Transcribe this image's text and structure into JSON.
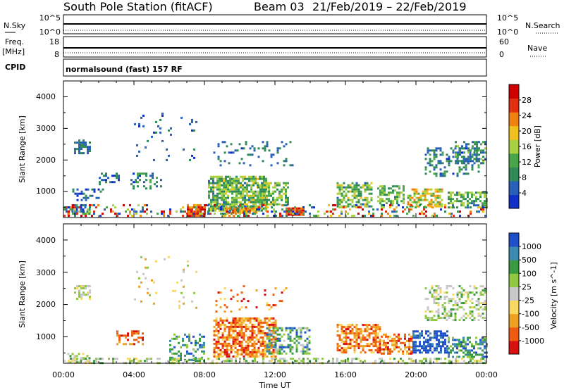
{
  "header": {
    "station": "South Pole Station (fitACF)",
    "beam": "Beam 03",
    "dates": "21/Feb/2019 – 22/Feb/2019"
  },
  "strips": {
    "nsky_label": "N.Sky",
    "nsky_ticks": [
      "10^5",
      "10^0"
    ],
    "nsearch_label": "N.Search",
    "nsearch_ticks": [
      "10^5",
      "10^0"
    ],
    "freq_label": "Freq.",
    "freq_unit": "[MHz]",
    "freq_ticks": [
      "18",
      "8"
    ],
    "nave_label": "Nave",
    "nave_ticks": [
      "60",
      "0"
    ],
    "cpid_label": "CPID",
    "cpid_text": "normalsound (fast) 157 RF"
  },
  "colors": {
    "power": [
      "#1030c8",
      "#2860b8",
      "#2f8a58",
      "#49a549",
      "#a9d040",
      "#f0c020",
      "#f08010",
      "#e03010",
      "#d00000"
    ],
    "velocity": [
      "#d81010",
      "#ee5c10",
      "#f0a020",
      "#f8d860",
      "#c8c8c8",
      "#90c840",
      "#3a9a40",
      "#3c8ab0",
      "#2050c8"
    ]
  },
  "chart_data": [
    {
      "type": "heatmap",
      "panel": "power",
      "ylabel": "Slant Range [km]",
      "yticks": [
        "4000",
        "3000",
        "2000",
        "1000"
      ],
      "ylim": [
        180,
        4500
      ],
      "xlim_hours": [
        0,
        24
      ],
      "colorbar_label": "Power [dB]",
      "colorbar_ticks": [
        "28",
        "24",
        "20",
        "16",
        "12",
        "8",
        "4"
      ],
      "colorbar_range": [
        0,
        30
      ],
      "blobs": [
        {
          "t0": 0.1,
          "t1": 1.5,
          "r0": 300,
          "r1": 600,
          "density": 0.55,
          "v0": 2,
          "v1": 14
        },
        {
          "t0": 0.6,
          "t1": 1.5,
          "r0": 2200,
          "r1": 2650,
          "density": 0.55,
          "v0": 3,
          "v1": 9
        },
        {
          "t0": 0.5,
          "t1": 2.2,
          "r0": 700,
          "r1": 1100,
          "density": 0.35,
          "v0": 2,
          "v1": 8
        },
        {
          "t0": 2.0,
          "t1": 3.2,
          "r0": 1200,
          "r1": 1600,
          "density": 0.45,
          "v0": 2,
          "v1": 10
        },
        {
          "t0": 3.8,
          "t1": 5.5,
          "r0": 1100,
          "r1": 1600,
          "density": 0.3,
          "v0": 3,
          "v1": 12
        },
        {
          "t0": 7.0,
          "t1": 8.0,
          "r0": 250,
          "r1": 600,
          "density": 0.9,
          "v0": 20,
          "v1": 30
        },
        {
          "t0": 8.2,
          "t1": 11.5,
          "r0": 400,
          "r1": 1500,
          "density": 0.75,
          "v0": 6,
          "v1": 18
        },
        {
          "t0": 9.2,
          "t1": 11.0,
          "r0": 300,
          "r1": 500,
          "density": 0.8,
          "v0": 18,
          "v1": 26
        },
        {
          "t0": 11.0,
          "t1": 12.8,
          "r0": 600,
          "r1": 1300,
          "density": 0.6,
          "v0": 8,
          "v1": 18
        },
        {
          "t0": 12.6,
          "t1": 13.6,
          "r0": 250,
          "r1": 500,
          "density": 0.9,
          "v0": 20,
          "v1": 30
        },
        {
          "t0": 15.5,
          "t1": 17.5,
          "r0": 500,
          "r1": 1300,
          "density": 0.65,
          "v0": 6,
          "v1": 18
        },
        {
          "t0": 17.8,
          "t1": 19.3,
          "r0": 600,
          "r1": 1200,
          "density": 0.55,
          "v0": 8,
          "v1": 16
        },
        {
          "t0": 19.5,
          "t1": 21.5,
          "r0": 500,
          "r1": 1100,
          "density": 0.55,
          "v0": 10,
          "v1": 22
        },
        {
          "t0": 20.5,
          "t1": 23.6,
          "r0": 1500,
          "r1": 2400,
          "density": 0.3,
          "v0": 3,
          "v1": 12
        },
        {
          "t0": 22.2,
          "t1": 23.9,
          "r0": 1900,
          "r1": 2600,
          "density": 0.45,
          "v0": 3,
          "v1": 14
        },
        {
          "t0": 21.8,
          "t1": 24.0,
          "r0": 500,
          "r1": 1000,
          "density": 0.6,
          "v0": 6,
          "v1": 16
        },
        {
          "t0": 8.5,
          "t1": 13.0,
          "r0": 1800,
          "r1": 2600,
          "density": 0.12,
          "v0": 3,
          "v1": 10
        },
        {
          "t0": 4.0,
          "t1": 7.5,
          "r0": 1900,
          "r1": 3500,
          "density": 0.05,
          "v0": 2,
          "v1": 8
        },
        {
          "t0": 0.0,
          "t1": 24.0,
          "r0": 200,
          "r1": 600,
          "density": 0.25,
          "v0": 0,
          "v1": 30
        }
      ]
    },
    {
      "type": "heatmap",
      "panel": "velocity",
      "ylabel": "Slant Range [km]",
      "yticks": [
        "4000",
        "3000",
        "2000",
        "1000"
      ],
      "ylim": [
        180,
        4500
      ],
      "xlim_hours": [
        0,
        24
      ],
      "colorbar_label": "Velocity [m s^-1]",
      "colorbar_ticks": [
        "1000",
        "500",
        "100",
        "25",
        "-25",
        "-100",
        "-500",
        "-1000"
      ],
      "blobs": [
        {
          "t0": 0.1,
          "t1": 1.5,
          "r0": 200,
          "r1": 500,
          "density": 0.5,
          "v0": 3,
          "v1": 6
        },
        {
          "t0": 0.6,
          "t1": 1.5,
          "r0": 2200,
          "r1": 2600,
          "density": 0.5,
          "v0": 3,
          "v1": 5
        },
        {
          "t0": 3.0,
          "t1": 4.5,
          "r0": 800,
          "r1": 1200,
          "density": 0.45,
          "v0": 0,
          "v1": 2
        },
        {
          "t0": 6.0,
          "t1": 8.0,
          "r0": 300,
          "r1": 1100,
          "density": 0.4,
          "v0": 5,
          "v1": 8
        },
        {
          "t0": 8.5,
          "t1": 12.0,
          "r0": 400,
          "r1": 1600,
          "density": 0.7,
          "v0": 0,
          "v1": 3
        },
        {
          "t0": 11.5,
          "t1": 14.0,
          "r0": 500,
          "r1": 1300,
          "density": 0.55,
          "v0": 4,
          "v1": 8
        },
        {
          "t0": 15.5,
          "t1": 18.0,
          "r0": 500,
          "r1": 1400,
          "density": 0.6,
          "v0": 0,
          "v1": 3
        },
        {
          "t0": 18.0,
          "t1": 19.8,
          "r0": 500,
          "r1": 1100,
          "density": 0.5,
          "v0": 0,
          "v1": 3
        },
        {
          "t0": 19.8,
          "t1": 21.8,
          "r0": 500,
          "r1": 1200,
          "density": 0.65,
          "v0": 7,
          "v1": 9
        },
        {
          "t0": 20.5,
          "t1": 23.9,
          "r0": 1500,
          "r1": 2600,
          "density": 0.35,
          "v0": 3,
          "v1": 6
        },
        {
          "t0": 21.8,
          "t1": 24.0,
          "r0": 400,
          "r1": 1000,
          "density": 0.55,
          "v0": 5,
          "v1": 8
        },
        {
          "t0": 8.5,
          "t1": 13.0,
          "r0": 1800,
          "r1": 2600,
          "density": 0.1,
          "v0": 0,
          "v1": 3
        },
        {
          "t0": 4.0,
          "t1": 7.5,
          "r0": 1900,
          "r1": 3500,
          "density": 0.05,
          "v0": 2,
          "v1": 5
        },
        {
          "t0": 0.0,
          "t1": 24.0,
          "r0": 200,
          "r1": 350,
          "density": 0.4,
          "v0": 3,
          "v1": 6
        }
      ]
    }
  ],
  "xaxis": {
    "ticks": [
      "00:00",
      "04:00",
      "08:00",
      "12:00",
      "16:00",
      "20:00",
      "00:00"
    ],
    "label": "Time UT"
  }
}
